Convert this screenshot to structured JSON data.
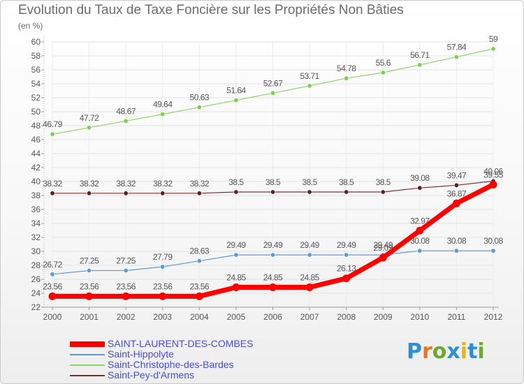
{
  "header": {
    "title": "Evolution du Taux de Taxe Foncière sur les Propriétés Non Bâties",
    "unit": "(en %)"
  },
  "logo": {
    "letters": [
      "P",
      "r",
      "o",
      "x",
      "i",
      "t",
      "i"
    ],
    "colors": [
      "#2b8fd6",
      "#e87722",
      "#6aaa2e",
      "#2b8fd6",
      "#e8b31a",
      "#2b8fd6",
      "#6aaa2e"
    ]
  },
  "chart_data": {
    "type": "line",
    "title": "Evolution du Taux de Taxe Foncière sur les Propriétés Non Bâties",
    "ylabel": "(en %)",
    "xlabel": "",
    "ylim": [
      22,
      60
    ],
    "yticks": [
      22,
      24,
      26,
      28,
      30,
      32,
      34,
      36,
      38,
      40,
      42,
      44,
      46,
      48,
      50,
      52,
      54,
      56,
      58,
      60
    ],
    "grid": true,
    "legend_position": "bottom-left",
    "x": [
      "2000",
      "2001",
      "2002",
      "2003",
      "2004",
      "2005",
      "2006",
      "2007",
      "2008",
      "2009",
      "2010",
      "2011",
      "2012"
    ],
    "series": [
      {
        "name": "SAINT-LAURENT-DES-COMBES",
        "color": "#ff0000",
        "values": [
          23.56,
          23.56,
          23.56,
          23.56,
          23.56,
          24.85,
          24.85,
          24.85,
          26.13,
          29.09,
          32.97,
          36.87,
          39.55
        ],
        "labels": [
          "23.56",
          "23.56",
          "23.56",
          "23.56",
          "23.56",
          "24.85",
          "24.85",
          "24.85",
          "26.13",
          "29.09",
          "32.97",
          "36.87",
          "39.55"
        ]
      },
      {
        "name": "Saint-Hippolyte",
        "color": "#5a9bd5",
        "values": [
          26.72,
          27.25,
          27.25,
          27.79,
          28.63,
          29.49,
          29.49,
          29.49,
          29.49,
          29.49,
          30.08,
          30.08,
          30.08
        ],
        "labels": [
          "26.72",
          "27.25",
          "27.25",
          "27.79",
          "28.63",
          "29.49",
          "29.49",
          "29.49",
          "29.49",
          "29.49",
          "30.08",
          "30.08",
          "30.08"
        ]
      },
      {
        "name": "Saint-Christophe-des-Bardes",
        "color": "#90d46a",
        "values": [
          46.79,
          47.72,
          48.67,
          49.64,
          50.63,
          51.64,
          52.67,
          53.71,
          54.78,
          55.6,
          56.71,
          57.84,
          59
        ],
        "labels": [
          "46.79",
          "47.72",
          "48.67",
          "49.64",
          "50.63",
          "51.64",
          "52.67",
          "53.71",
          "54.78",
          "55.6",
          "56.71",
          "57.84",
          "59"
        ]
      },
      {
        "name": "Saint-Pey-d'Armens",
        "color": "#7a3030",
        "values": [
          38.32,
          38.32,
          38.32,
          38.32,
          38.32,
          38.5,
          38.5,
          38.5,
          38.5,
          38.5,
          39.08,
          39.47,
          40.06
        ],
        "labels": [
          "38.32",
          "38.32",
          "38.32",
          "38.32",
          "38.32",
          "38.5",
          "38.5",
          "38.5",
          "38.5",
          "38.5",
          "39.08",
          "39.47",
          "40.06"
        ]
      }
    ]
  }
}
